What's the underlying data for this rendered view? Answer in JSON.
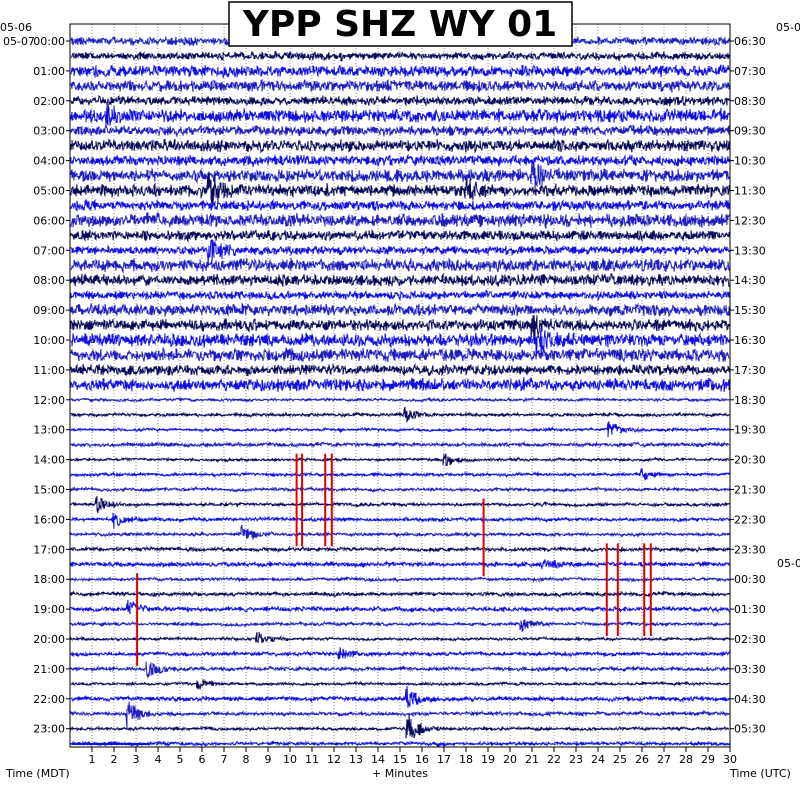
{
  "chart_data": {
    "type": "line",
    "title": "YPP SHZ WY 01",
    "date_left_top": "05-06",
    "date_left": "05-07",
    "date_right_top": "05-0",
    "date_right_mid": "05-0",
    "xlabel": "+ Minutes",
    "left_axis_title": "Time (MDT)",
    "right_axis_title": "Time (UTC)",
    "xlim": [
      0,
      30
    ],
    "x_ticks": [
      "1",
      "2",
      "3",
      "4",
      "5",
      "6",
      "7",
      "8",
      "9",
      "10",
      "11",
      "12",
      "13",
      "14",
      "15",
      "16",
      "17",
      "18",
      "19",
      "20",
      "21",
      "22",
      "23",
      "24",
      "25",
      "26",
      "27",
      "28",
      "29",
      "30"
    ],
    "left_hour_labels": [
      "00:00",
      "01:00",
      "02:00",
      "03:00",
      "04:00",
      "05:00",
      "06:00",
      "07:00",
      "08:00",
      "09:00",
      "10:00",
      "11:00",
      "12:00",
      "13:00",
      "14:00",
      "15:00",
      "16:00",
      "17:00",
      "18:00",
      "19:00",
      "20:00",
      "21:00",
      "22:00",
      "23:00"
    ],
    "right_hour_labels": [
      "06:30",
      "07:30",
      "08:30",
      "09:30",
      "10:30",
      "11:30",
      "12:30",
      "13:30",
      "14:30",
      "15:30",
      "16:30",
      "17:30",
      "18:30",
      "19:30",
      "20:30",
      "21:30",
      "22:30",
      "23:30",
      "00:30",
      "01:30",
      "02:30",
      "03:30",
      "04:30",
      "05:30"
    ],
    "row_colors": [
      "#1f1fbf",
      "#0a0a5c",
      "#1010e0"
    ],
    "trace_count": 48,
    "noisy_rows": 24,
    "events": [
      {
        "row": 5,
        "minute": 1.6,
        "amp": 8,
        "color": "#0a0a5c"
      },
      {
        "row": 9,
        "minute": 21,
        "amp": 12,
        "color": "#1010e0"
      },
      {
        "row": 10,
        "minute": 6.3,
        "amp": 18,
        "color": "#1010e0"
      },
      {
        "row": 10,
        "minute": 18,
        "amp": 10,
        "color": "#0a0a5c"
      },
      {
        "row": 14,
        "minute": 6.3,
        "amp": 16,
        "color": "#1010e0"
      },
      {
        "row": 19,
        "minute": 21,
        "amp": 10,
        "color": "#0a0a5c"
      },
      {
        "row": 20,
        "minute": 21.2,
        "amp": 14,
        "color": "#1010e0"
      },
      {
        "row": 25,
        "minute": 15.2,
        "amp": 8,
        "color": "#1010e0"
      },
      {
        "row": 26,
        "minute": 24.5,
        "amp": 9,
        "color": "#1010e0"
      },
      {
        "row": 28,
        "minute": 17,
        "amp": 7,
        "color": "#1f1fbf"
      },
      {
        "row": 29,
        "minute": 26,
        "amp": 6,
        "color": "#1010e0"
      },
      {
        "row": 31,
        "minute": 1.2,
        "amp": 8,
        "color": "#0a0a5c"
      },
      {
        "row": 32,
        "minute": 2,
        "amp": 8,
        "color": "#1010e0"
      },
      {
        "row": 33,
        "minute": 7.8,
        "amp": 9,
        "color": "#1f1fbf"
      },
      {
        "row": 35,
        "minute": 21.5,
        "amp": 6,
        "color": "#0a0a5c"
      },
      {
        "row": 38,
        "minute": 2.6,
        "amp": 9,
        "color": "#1f1fbf"
      },
      {
        "row": 39,
        "minute": 20.5,
        "amp": 7,
        "color": "#1010e0"
      },
      {
        "row": 40,
        "minute": 8.5,
        "amp": 8,
        "color": "#1f1fbf"
      },
      {
        "row": 41,
        "minute": 12.2,
        "amp": 7,
        "color": "#0a0a5c"
      },
      {
        "row": 42,
        "minute": 3.5,
        "amp": 9,
        "color": "#1010e0"
      },
      {
        "row": 43,
        "minute": 5.8,
        "amp": 6,
        "color": "#1010e0"
      },
      {
        "row": 44,
        "minute": 15.3,
        "amp": 12,
        "color": "#1f1fbf"
      },
      {
        "row": 45,
        "minute": 2.6,
        "amp": 14,
        "color": "#1010e0"
      },
      {
        "row": 46,
        "minute": 15.3,
        "amp": 18,
        "color": "#1f1fbf"
      }
    ],
    "red_markers": [
      {
        "minute": 10.3,
        "row_start": 27.6,
        "row_end": 33.8
      },
      {
        "minute": 10.55,
        "row_start": 27.6,
        "row_end": 33.8
      },
      {
        "minute": 11.6,
        "row_start": 27.6,
        "row_end": 33.8
      },
      {
        "minute": 11.9,
        "row_start": 27.6,
        "row_end": 33.8
      },
      {
        "minute": 18.8,
        "row_start": 30.6,
        "row_end": 35.8
      },
      {
        "minute": 3.05,
        "row_start": 35.6,
        "row_end": 41.8
      },
      {
        "minute": 24.4,
        "row_start": 33.6,
        "row_end": 39.8
      },
      {
        "minute": 24.9,
        "row_start": 33.6,
        "row_end": 39.8
      },
      {
        "minute": 26.1,
        "row_start": 33.6,
        "row_end": 39.8
      },
      {
        "minute": 26.4,
        "row_start": 33.6,
        "row_end": 39.8
      }
    ],
    "grid": true
  }
}
